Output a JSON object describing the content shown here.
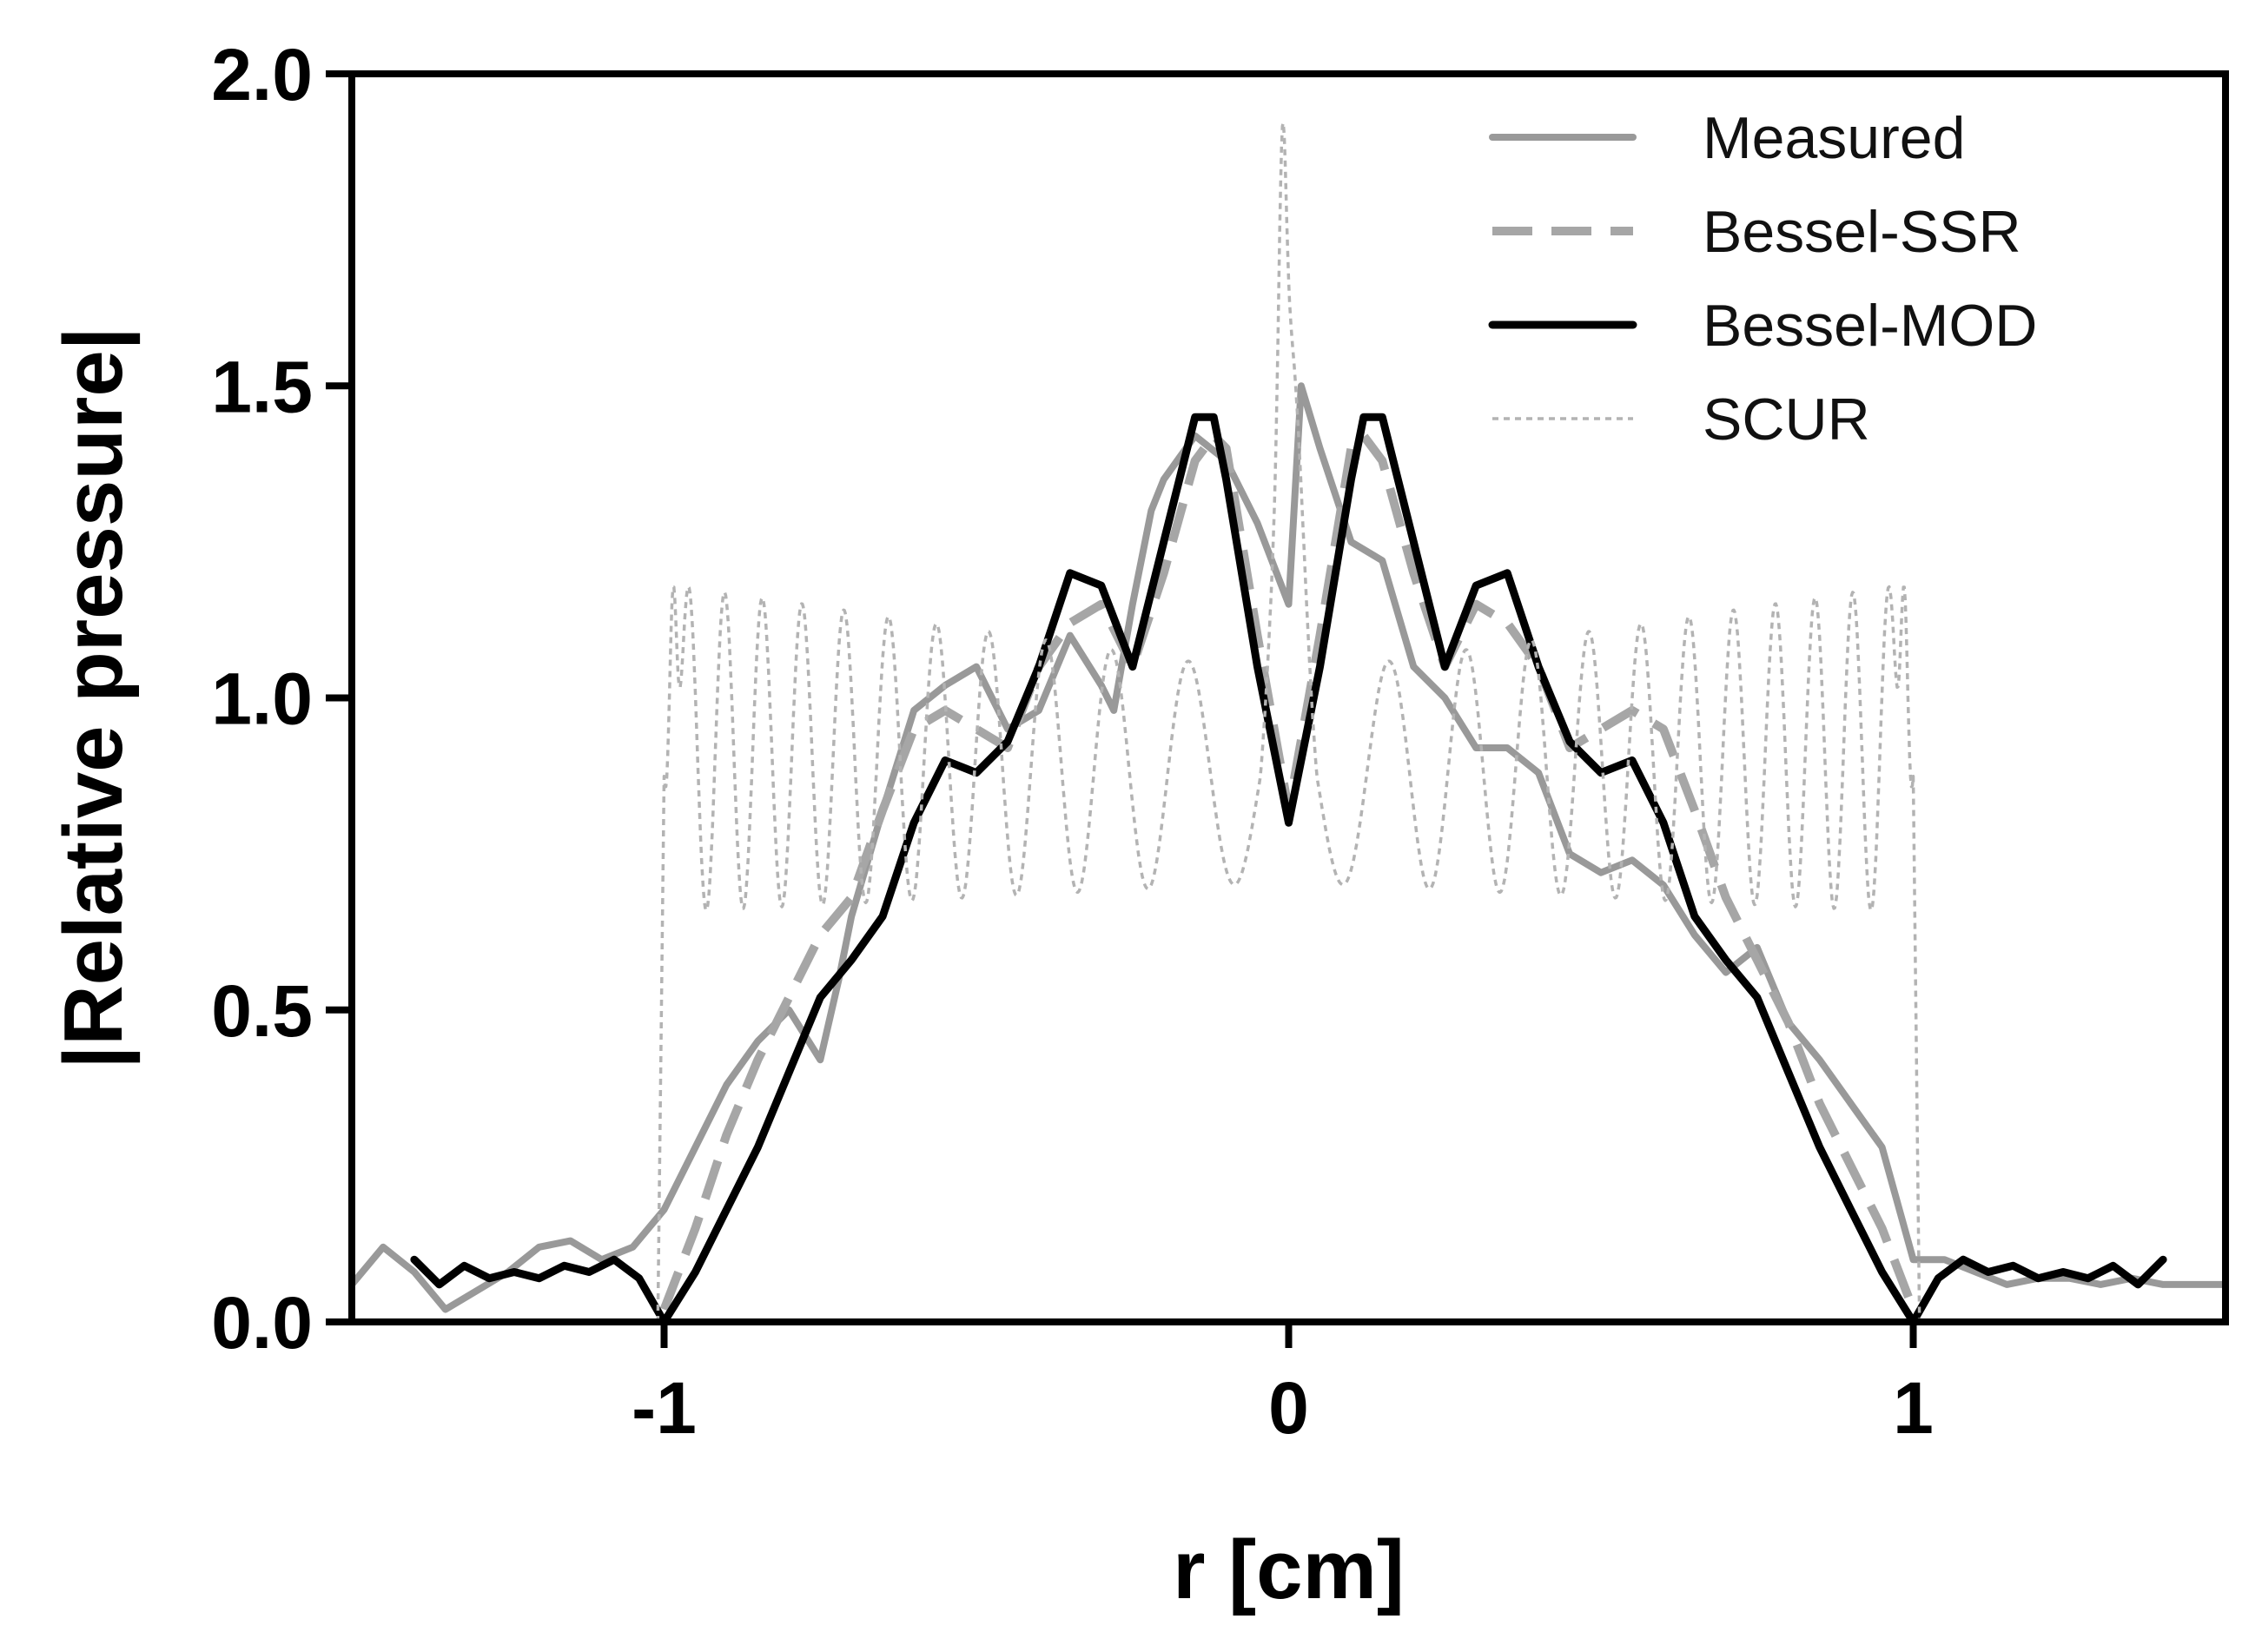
{
  "chart_data": {
    "type": "line",
    "title": "",
    "xlabel": "r [cm]",
    "ylabel": "|Relative pressure|",
    "xlim": [
      -1.5,
      1.5
    ],
    "ylim": [
      0.0,
      2.0
    ],
    "grid": false,
    "legend_position": "top-right",
    "x_ticks": [
      {
        "value": -1,
        "label": "-1"
      },
      {
        "value": 0,
        "label": "0"
      },
      {
        "value": 1,
        "label": "1"
      }
    ],
    "y_ticks": [
      {
        "value": 0.0,
        "label": "0.0"
      },
      {
        "value": 0.5,
        "label": "0.5"
      },
      {
        "value": 1.0,
        "label": "1.0"
      },
      {
        "value": 1.5,
        "label": "1.5"
      },
      {
        "value": 2.0,
        "label": "2.0"
      }
    ],
    "series": [
      {
        "name": "Measured",
        "color": "#999999",
        "style": "solid",
        "x": [
          -1.5,
          -1.45,
          -1.4,
          -1.35,
          -1.3,
          -1.25,
          -1.2,
          -1.15,
          -1.1,
          -1.05,
          -1.0,
          -0.95,
          -0.9,
          -0.85,
          -0.8,
          -0.75,
          -0.72,
          -0.7,
          -0.65,
          -0.6,
          -0.55,
          -0.5,
          -0.45,
          -0.4,
          -0.35,
          -0.3,
          -0.28,
          -0.25,
          -0.22,
          -0.2,
          -0.15,
          -0.1,
          -0.05,
          0.0,
          0.02,
          0.05,
          0.1,
          0.15,
          0.2,
          0.25,
          0.3,
          0.35,
          0.4,
          0.45,
          0.5,
          0.55,
          0.6,
          0.65,
          0.7,
          0.75,
          0.8,
          0.85,
          0.9,
          0.95,
          1.0,
          1.05,
          1.1,
          1.15,
          1.2,
          1.25,
          1.3,
          1.35,
          1.4,
          1.45,
          1.5
        ],
        "y": [
          0.06,
          0.12,
          0.08,
          0.02,
          0.05,
          0.08,
          0.12,
          0.13,
          0.1,
          0.12,
          0.18,
          0.28,
          0.38,
          0.45,
          0.5,
          0.42,
          0.55,
          0.65,
          0.82,
          0.98,
          1.02,
          1.05,
          0.95,
          0.98,
          1.1,
          1.02,
          0.98,
          1.15,
          1.3,
          1.35,
          1.42,
          1.38,
          1.28,
          1.15,
          1.5,
          1.4,
          1.25,
          1.22,
          1.05,
          1.0,
          0.92,
          0.92,
          0.88,
          0.75,
          0.72,
          0.74,
          0.7,
          0.62,
          0.56,
          0.6,
          0.48,
          0.42,
          0.35,
          0.28,
          0.1,
          0.1,
          0.08,
          0.06,
          0.07,
          0.07,
          0.06,
          0.07,
          0.06,
          0.06,
          0.06
        ]
      },
      {
        "name": "Bessel-SSR",
        "color": "#a6a6a6",
        "style": "dashed",
        "x": [
          -1.0,
          -0.95,
          -0.9,
          -0.85,
          -0.8,
          -0.75,
          -0.7,
          -0.65,
          -0.6,
          -0.55,
          -0.5,
          -0.45,
          -0.4,
          -0.35,
          -0.3,
          -0.25,
          -0.2,
          -0.15,
          -0.12,
          -0.1,
          -0.05,
          0.0,
          0.05,
          0.1,
          0.12,
          0.15,
          0.2,
          0.25,
          0.3,
          0.35,
          0.4,
          0.45,
          0.5,
          0.55,
          0.6,
          0.65,
          0.7,
          0.75,
          0.8,
          0.85,
          0.9,
          0.95,
          1.0
        ],
        "y": [
          0.02,
          0.15,
          0.3,
          0.42,
          0.52,
          0.62,
          0.68,
          0.82,
          0.95,
          0.98,
          0.95,
          0.92,
          1.05,
          1.12,
          1.15,
          1.05,
          1.2,
          1.38,
          1.42,
          1.4,
          1.1,
          0.82,
          1.1,
          1.4,
          1.42,
          1.38,
          1.2,
          1.05,
          1.15,
          1.12,
          1.05,
          0.92,
          0.95,
          0.98,
          0.95,
          0.82,
          0.68,
          0.58,
          0.48,
          0.35,
          0.25,
          0.15,
          0.02
        ]
      },
      {
        "name": "Bessel-MOD",
        "color": "#000000",
        "style": "solid",
        "x": [
          -1.4,
          -1.36,
          -1.32,
          -1.28,
          -1.24,
          -1.2,
          -1.16,
          -1.12,
          -1.08,
          -1.04,
          -1.0,
          -0.95,
          -0.9,
          -0.85,
          -0.8,
          -0.75,
          -0.7,
          -0.65,
          -0.6,
          -0.55,
          -0.5,
          -0.45,
          -0.4,
          -0.35,
          -0.3,
          -0.25,
          -0.2,
          -0.15,
          -0.12,
          -0.1,
          -0.05,
          0.0,
          0.05,
          0.1,
          0.12,
          0.15,
          0.2,
          0.25,
          0.3,
          0.35,
          0.4,
          0.45,
          0.5,
          0.55,
          0.6,
          0.65,
          0.7,
          0.75,
          0.8,
          0.85,
          0.9,
          0.95,
          1.0,
          1.04,
          1.08,
          1.12,
          1.16,
          1.2,
          1.24,
          1.28,
          1.32,
          1.36,
          1.4
        ],
        "y": [
          0.1,
          0.06,
          0.09,
          0.07,
          0.08,
          0.07,
          0.09,
          0.08,
          0.1,
          0.07,
          0.0,
          0.08,
          0.18,
          0.28,
          0.4,
          0.52,
          0.58,
          0.65,
          0.8,
          0.9,
          0.88,
          0.93,
          1.05,
          1.2,
          1.18,
          1.05,
          1.25,
          1.45,
          1.45,
          1.35,
          1.05,
          0.8,
          1.05,
          1.35,
          1.45,
          1.45,
          1.25,
          1.05,
          1.18,
          1.2,
          1.05,
          0.93,
          0.88,
          0.9,
          0.8,
          0.65,
          0.58,
          0.52,
          0.4,
          0.28,
          0.18,
          0.08,
          0.0,
          0.07,
          0.1,
          0.08,
          0.09,
          0.07,
          0.08,
          0.07,
          0.09,
          0.06,
          0.1
        ]
      },
      {
        "name": "SCUR",
        "color": "#b3b3b3",
        "style": "dotted",
        "x_range": [
          -1.0,
          1.0
        ],
        "baseline": 0.0,
        "oscillation_mean": 0.92,
        "oscillation_amplitude": 0.22,
        "center_peak": 2.0,
        "edge_peak": 1.18
      }
    ]
  }
}
